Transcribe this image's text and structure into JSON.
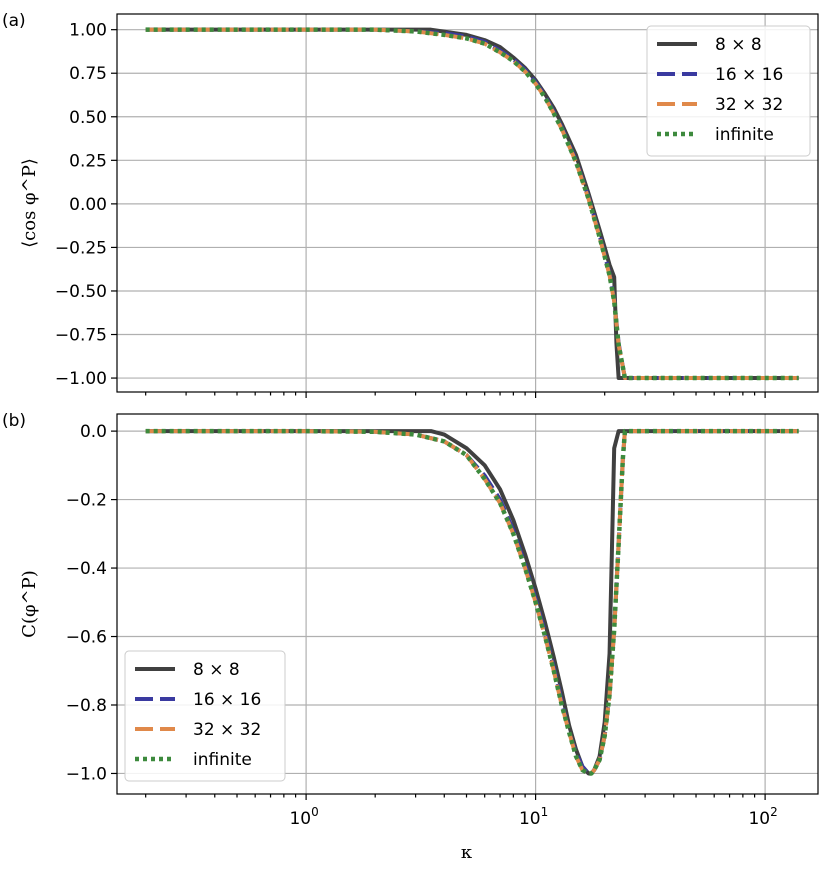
{
  "chart_data": [
    {
      "panel_label": "(a)",
      "type": "line",
      "x_scale": "log",
      "xlim": [
        0.15,
        170
      ],
      "ylim": [
        -1.08,
        1.09
      ],
      "ylabel": "⟨cos φ^P⟩",
      "xlabel": "",
      "yticks": [
        1.0,
        0.75,
        0.5,
        0.25,
        0.0,
        -0.25,
        -0.5,
        -0.75,
        -1.0
      ],
      "ytick_labels": [
        "1.00",
        "0.75",
        "0.50",
        "0.25",
        "0.00",
        "−0.25",
        "−0.50",
        "−0.75",
        "−1.00"
      ],
      "grid": true,
      "legend_position": "top-right",
      "series": [
        {
          "name": "8 × 8",
          "color": "#404040",
          "style": "solid",
          "x": [
            0.2,
            1,
            2,
            3.5,
            5,
            6,
            7,
            8,
            9,
            10,
            11,
            12,
            13,
            15,
            17,
            19,
            20,
            21,
            22,
            22.5,
            23,
            140
          ],
          "y": [
            1,
            1,
            1,
            1,
            0.97,
            0.94,
            0.9,
            0.84,
            0.78,
            0.71,
            0.63,
            0.55,
            0.46,
            0.28,
            0.06,
            -0.15,
            -0.25,
            -0.35,
            -0.42,
            -0.8,
            -1,
            -1
          ]
        },
        {
          "name": "16 × 16",
          "color": "#3a3aa0",
          "style": "dashed",
          "x": [
            0.2,
            1,
            2,
            3,
            4,
            5,
            6,
            7,
            8,
            9,
            10,
            11,
            12,
            13,
            15,
            17,
            19,
            21,
            22,
            23,
            24.5,
            140
          ],
          "y": [
            1,
            1,
            1,
            0.99,
            0.98,
            0.96,
            0.93,
            0.88,
            0.83,
            0.77,
            0.7,
            0.62,
            0.53,
            0.44,
            0.25,
            0.04,
            -0.18,
            -0.4,
            -0.55,
            -0.8,
            -1,
            -1
          ]
        },
        {
          "name": "32 × 32",
          "color": "#e0894a",
          "style": "dashed",
          "x": [
            0.2,
            1,
            2,
            3,
            4,
            5,
            6,
            7,
            8,
            9,
            10,
            11,
            12,
            13,
            15,
            17,
            19,
            21,
            22,
            23,
            24.5,
            140
          ],
          "y": [
            1,
            1,
            1,
            0.99,
            0.97,
            0.95,
            0.92,
            0.87,
            0.82,
            0.76,
            0.69,
            0.61,
            0.52,
            0.43,
            0.24,
            0.03,
            -0.19,
            -0.41,
            -0.56,
            -0.81,
            -1,
            -1
          ]
        },
        {
          "name": "infinite",
          "color": "#3d8a3d",
          "style": "dotted",
          "x": [
            0.2,
            1,
            2,
            3,
            4,
            5,
            6,
            7,
            8,
            9,
            10,
            11,
            12,
            13,
            15,
            17,
            19,
            21,
            22,
            23,
            24.5,
            140
          ],
          "y": [
            1,
            1,
            1,
            0.99,
            0.97,
            0.95,
            0.92,
            0.87,
            0.82,
            0.76,
            0.69,
            0.61,
            0.52,
            0.43,
            0.24,
            0.03,
            -0.19,
            -0.41,
            -0.56,
            -0.81,
            -1,
            -1
          ]
        }
      ]
    },
    {
      "panel_label": "(b)",
      "type": "line",
      "x_scale": "log",
      "xlim": [
        0.15,
        170
      ],
      "ylim": [
        -1.06,
        0.05
      ],
      "ylabel": "C(φ^P)",
      "xlabel": "κ",
      "yticks": [
        0.0,
        -0.2,
        -0.4,
        -0.6,
        -0.8,
        -1.0
      ],
      "ytick_labels": [
        "0.0",
        "−0.2",
        "−0.4",
        "−0.6",
        "−0.8",
        "−1.0"
      ],
      "xtick_labels": [
        {
          "base": "10",
          "exp": "0",
          "value": 1
        },
        {
          "base": "10",
          "exp": "1",
          "value": 10
        },
        {
          "base": "10",
          "exp": "2",
          "value": 100
        }
      ],
      "grid": true,
      "legend_position": "bottom-left",
      "series": [
        {
          "name": "8 × 8",
          "color": "#404040",
          "style": "solid",
          "x": [
            0.2,
            1,
            2,
            3.5,
            4,
            5,
            6,
            7,
            8,
            9,
            10,
            11,
            12,
            13,
            14,
            15,
            16,
            17,
            17.5,
            18,
            19,
            20,
            21,
            21.5,
            22,
            23,
            140
          ],
          "y": [
            0,
            0,
            0,
            0,
            -0.01,
            -0.05,
            -0.1,
            -0.17,
            -0.26,
            -0.36,
            -0.46,
            -0.56,
            -0.66,
            -0.76,
            -0.86,
            -0.93,
            -0.98,
            -1.0,
            -1.0,
            -0.99,
            -0.95,
            -0.85,
            -0.65,
            -0.35,
            -0.05,
            0,
            0
          ]
        },
        {
          "name": "16 × 16",
          "color": "#3a3aa0",
          "style": "dashed",
          "x": [
            0.2,
            1,
            2,
            3,
            4,
            5,
            6,
            7,
            8,
            9,
            10,
            11,
            12,
            13,
            14,
            15,
            16,
            17,
            17.5,
            18,
            19,
            20,
            21,
            22,
            23,
            24,
            24.5,
            140
          ],
          "y": [
            0,
            0,
            -0.002,
            -0.01,
            -0.03,
            -0.07,
            -0.13,
            -0.2,
            -0.29,
            -0.39,
            -0.49,
            -0.59,
            -0.69,
            -0.79,
            -0.88,
            -0.94,
            -0.98,
            -1.0,
            -1.0,
            -0.99,
            -0.96,
            -0.89,
            -0.77,
            -0.58,
            -0.33,
            -0.08,
            0,
            0
          ]
        },
        {
          "name": "32 × 32",
          "color": "#e0894a",
          "style": "dashed",
          "x": [
            0.2,
            1,
            2,
            3,
            4,
            5,
            6,
            7,
            8,
            9,
            10,
            11,
            12,
            13,
            14,
            15,
            16,
            17,
            17.5,
            18,
            19,
            20,
            21,
            22,
            23,
            24,
            24.5,
            140
          ],
          "y": [
            0,
            0,
            -0.002,
            -0.01,
            -0.03,
            -0.07,
            -0.14,
            -0.21,
            -0.3,
            -0.4,
            -0.5,
            -0.6,
            -0.7,
            -0.8,
            -0.88,
            -0.95,
            -0.99,
            -1.0,
            -1.0,
            -0.99,
            -0.96,
            -0.89,
            -0.77,
            -0.58,
            -0.33,
            -0.08,
            0,
            0
          ]
        },
        {
          "name": "infinite",
          "color": "#3d8a3d",
          "style": "dotted",
          "x": [
            0.2,
            1,
            2,
            3,
            4,
            5,
            6,
            7,
            8,
            9,
            10,
            11,
            12,
            13,
            14,
            15,
            16,
            17,
            17.5,
            18,
            19,
            20,
            21,
            22,
            23,
            24,
            24.5,
            140
          ],
          "y": [
            0,
            0,
            -0.002,
            -0.01,
            -0.03,
            -0.07,
            -0.14,
            -0.21,
            -0.3,
            -0.4,
            -0.5,
            -0.6,
            -0.7,
            -0.8,
            -0.88,
            -0.95,
            -0.99,
            -1.0,
            -1.0,
            -0.99,
            -0.96,
            -0.89,
            -0.77,
            -0.58,
            -0.33,
            -0.08,
            0,
            0
          ]
        }
      ]
    }
  ]
}
